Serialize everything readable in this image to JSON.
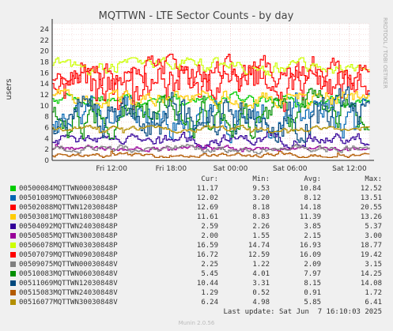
{
  "chart_data": {
    "type": "line",
    "title": "MQTTWN - LTE Sector Counts - by day",
    "ylabel": "users",
    "side_label": "RRDTOOL / TOBI OETIKER",
    "ylim": [
      0,
      25
    ],
    "yticks": [
      0,
      2,
      4,
      6,
      8,
      10,
      12,
      14,
      16,
      18,
      20,
      22,
      24
    ],
    "x_range_hours": [
      6.0,
      38.0
    ],
    "xticks": [
      {
        "label": "Fri 12:00",
        "hour": 12
      },
      {
        "label": "Fri 18:00",
        "hour": 18
      },
      {
        "label": "Sat 00:00",
        "hour": 24
      },
      {
        "label": "Sat 06:00",
        "hour": 30
      },
      {
        "label": "Sat 12:00",
        "hour": 36
      }
    ],
    "grid": true,
    "series": [
      {
        "name": "00500084MQTTWN00030848P",
        "color": "#00cc00",
        "cur": 11.17,
        "min": 9.53,
        "avg": 10.84,
        "max": 12.52
      },
      {
        "name": "00501089MQTTWN06030848P",
        "color": "#0066b3",
        "cur": 12.02,
        "min": 3.2,
        "avg": 8.12,
        "max": 13.51
      },
      {
        "name": "00502088MQTTWN12030848P",
        "color": "#ff0000",
        "cur": 12.69,
        "min": 8.18,
        "avg": 14.18,
        "max": 20.55
      },
      {
        "name": "00503081MQTTWN18030848P",
        "color": "#ffcc00",
        "cur": 11.61,
        "min": 8.83,
        "avg": 11.39,
        "max": 13.26
      },
      {
        "name": "00504092MQTTWN24030848P",
        "color": "#330099",
        "cur": 2.59,
        "min": 2.26,
        "avg": 3.85,
        "max": 5.37
      },
      {
        "name": "00505085MQTTWN30030848P",
        "color": "#990099",
        "cur": 2.0,
        "min": 1.55,
        "avg": 2.15,
        "max": 3.0
      },
      {
        "name": "00506078MQTTWN03030848P",
        "color": "#ccff00",
        "cur": 16.59,
        "min": 14.74,
        "avg": 16.93,
        "max": 18.77
      },
      {
        "name": "00507079MQTTWN09030848P",
        "color": "#ff0000",
        "cur": 16.72,
        "min": 12.59,
        "avg": 16.09,
        "max": 19.42
      },
      {
        "name": "00509075MQTTWN00030848V",
        "color": "#808080",
        "cur": 2.25,
        "min": 1.22,
        "avg": 2.09,
        "max": 3.15
      },
      {
        "name": "00510083MQTTWN06030848V",
        "color": "#008f00",
        "cur": 5.45,
        "min": 4.01,
        "avg": 7.97,
        "max": 14.25
      },
      {
        "name": "00511069MQTTWN12030848V",
        "color": "#00487d",
        "cur": 10.44,
        "min": 3.31,
        "avg": 8.15,
        "max": 14.08
      },
      {
        "name": "00515083MQTTWN24030848V",
        "color": "#b35a00",
        "cur": 1.29,
        "min": 0.52,
        "avg": 0.91,
        "max": 1.72
      },
      {
        "name": "00516077MQTTWN30030848V",
        "color": "#b38f00",
        "cur": 6.24,
        "min": 4.98,
        "avg": 5.85,
        "max": 6.41
      }
    ]
  },
  "legend_headers": {
    "cur": "Cur:",
    "min": "Min:",
    "avg": "Avg:",
    "max": "Max:"
  },
  "last_update": "Last update: Sat Jun  7 16:10:03 2025",
  "footer": "Munin 2.0.56"
}
